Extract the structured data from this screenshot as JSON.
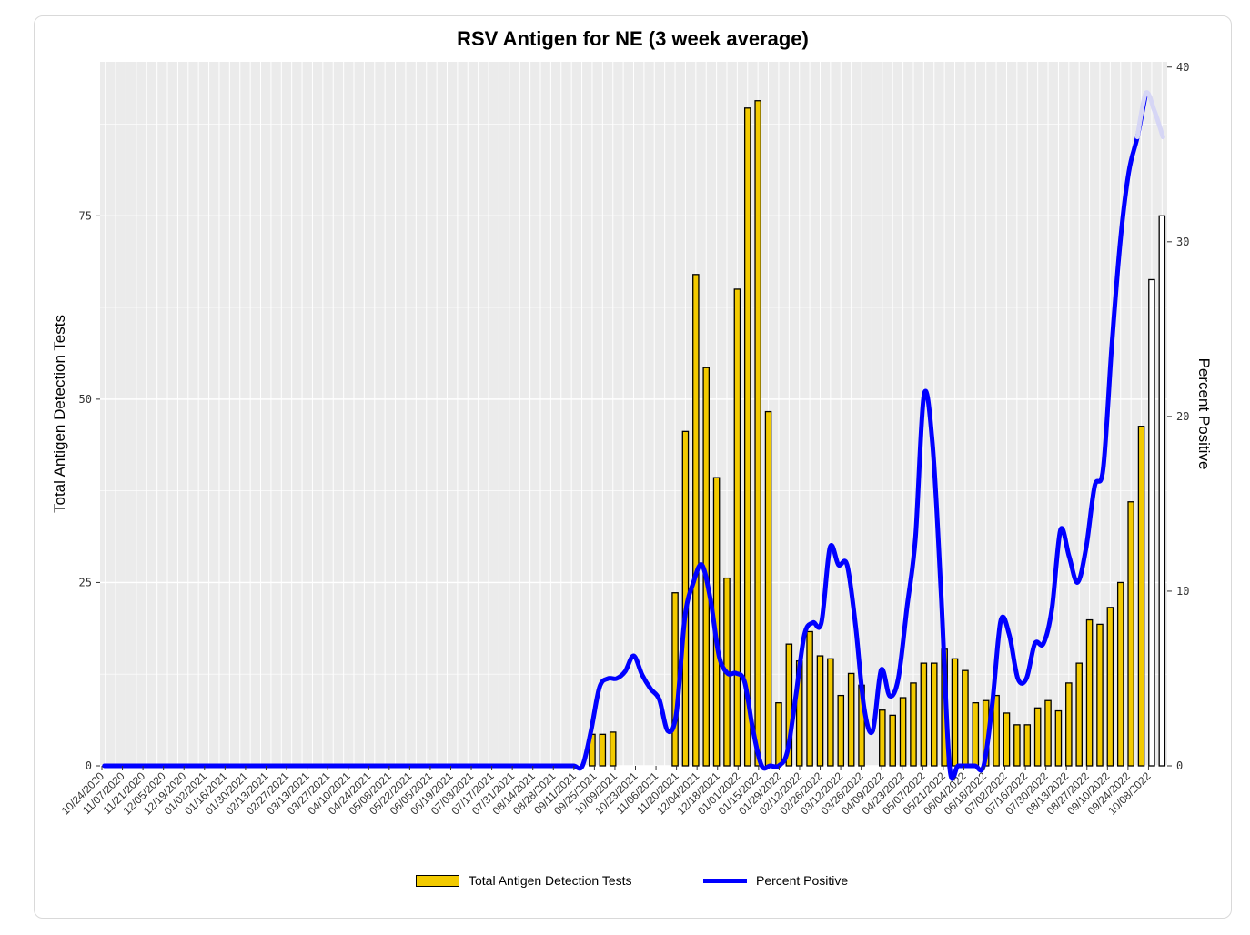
{
  "chart_data": {
    "type": "bar",
    "title": "RSV Antigen for NE (3 week average)",
    "ylabel": "Total Antigen Detection Tests",
    "ylabel_right": "Percent Positive",
    "xlabel": "",
    "ylim": [
      0,
      96
    ],
    "ylim_right": [
      0,
      40.3
    ],
    "yticks": [
      0,
      25,
      50,
      75
    ],
    "yticks_right": [
      0,
      10,
      20,
      30,
      40
    ],
    "grid": true,
    "legend_position": "bottom",
    "x_tick_labels": [
      "10/24/2020",
      "11/07/2020",
      "11/21/2020",
      "12/05/2020",
      "12/19/2020",
      "01/02/2021",
      "01/16/2021",
      "01/30/2021",
      "02/13/2021",
      "02/27/2021",
      "03/13/2021",
      "03/27/2021",
      "04/10/2021",
      "04/24/2021",
      "05/08/2021",
      "05/22/2021",
      "06/05/2021",
      "06/19/2021",
      "07/03/2021",
      "07/17/2021",
      "07/31/2021",
      "08/14/2021",
      "08/28/2021",
      "09/11/2021",
      "09/25/2021",
      "10/09/2021",
      "10/23/2021",
      "11/06/2021",
      "11/20/2021",
      "12/04/2021",
      "12/18/2021",
      "01/01/2022",
      "01/15/2022",
      "01/29/2022",
      "02/12/2022",
      "02/26/2022",
      "03/12/2022",
      "03/26/2022",
      "04/09/2022",
      "04/23/2022",
      "05/07/2022",
      "05/21/2022",
      "06/04/2022",
      "06/18/2022",
      "07/02/2022",
      "07/16/2022",
      "07/30/2022",
      "08/13/2022",
      "08/27/2022",
      "09/10/2022",
      "09/24/2022",
      "10/08/2022"
    ],
    "series": [
      {
        "name": "Total Antigen Detection Tests",
        "type": "bar",
        "color": "#F2CA00",
        "provisional_last_n": 2,
        "values": [
          0,
          0,
          0,
          0,
          0,
          0,
          0,
          0,
          0,
          0,
          0,
          0,
          0,
          0,
          0,
          0,
          0,
          0,
          0,
          0,
          0,
          0,
          0,
          0,
          0,
          0,
          0,
          0,
          0,
          0,
          0,
          0,
          0,
          0,
          0,
          0,
          0,
          0,
          0,
          0,
          0,
          0,
          0,
          0,
          0,
          0,
          0,
          4.3,
          4.3,
          4.6,
          0,
          0,
          0,
          0,
          0,
          23.6,
          45.6,
          67,
          54.3,
          39.3,
          25.6,
          65,
          89.7,
          90.7,
          48.3,
          8.6,
          16.6,
          14.3,
          18.3,
          15,
          14.6,
          9.6,
          12.6,
          11,
          0,
          7.6,
          6.9,
          9.3,
          11.3,
          14,
          14,
          15.9,
          14.6,
          13,
          8.6,
          8.9,
          9.6,
          7.2,
          5.6,
          5.6,
          7.9,
          8.9,
          7.5,
          11.3,
          14,
          19.9,
          19.3,
          21.6,
          25,
          36,
          46.3,
          66.3,
          75
        ]
      },
      {
        "name": "Percent Positive",
        "type": "line",
        "color": "#0000FF",
        "provisional_last_n": 3,
        "values": [
          0,
          0,
          0,
          0,
          0,
          0,
          0,
          0,
          0,
          0,
          0,
          0,
          0,
          0,
          0,
          0,
          0,
          0,
          0,
          0,
          0,
          0,
          0,
          0,
          0,
          0,
          0,
          0,
          0,
          0,
          0,
          0,
          0,
          0,
          0,
          0,
          0,
          0,
          0,
          0,
          0,
          0,
          0,
          0,
          0,
          0,
          0,
          0,
          0,
          0,
          0,
          0,
          0,
          0,
          0,
          0,
          0,
          2,
          4.5,
          5,
          5,
          5.4,
          6.3,
          5.2,
          4.4,
          3.8,
          2,
          3,
          8.5,
          10.5,
          11.5,
          9.5,
          6.3,
          5.3,
          5.3,
          4.8,
          2,
          0,
          0,
          0,
          0.8,
          4,
          7.5,
          8.2,
          8.2,
          12.5,
          11.5,
          11.5,
          8,
          3.3,
          2,
          5.5,
          4,
          5,
          9,
          13,
          21.2,
          18.5,
          10,
          0,
          0,
          0,
          0,
          0,
          3.5,
          8.3,
          7.5,
          5,
          5,
          7,
          7,
          9,
          13.5,
          12,
          10.5,
          12.5,
          16,
          17,
          24,
          30,
          34,
          36,
          38.5,
          37.5,
          36
        ]
      }
    ]
  },
  "legend": {
    "bars_label": "Total Antigen Detection Tests",
    "line_label": "Percent Positive"
  },
  "colors": {
    "panel": "#EBEBEB",
    "bar_fill": "#F2CA00",
    "line": "#0000FF"
  }
}
